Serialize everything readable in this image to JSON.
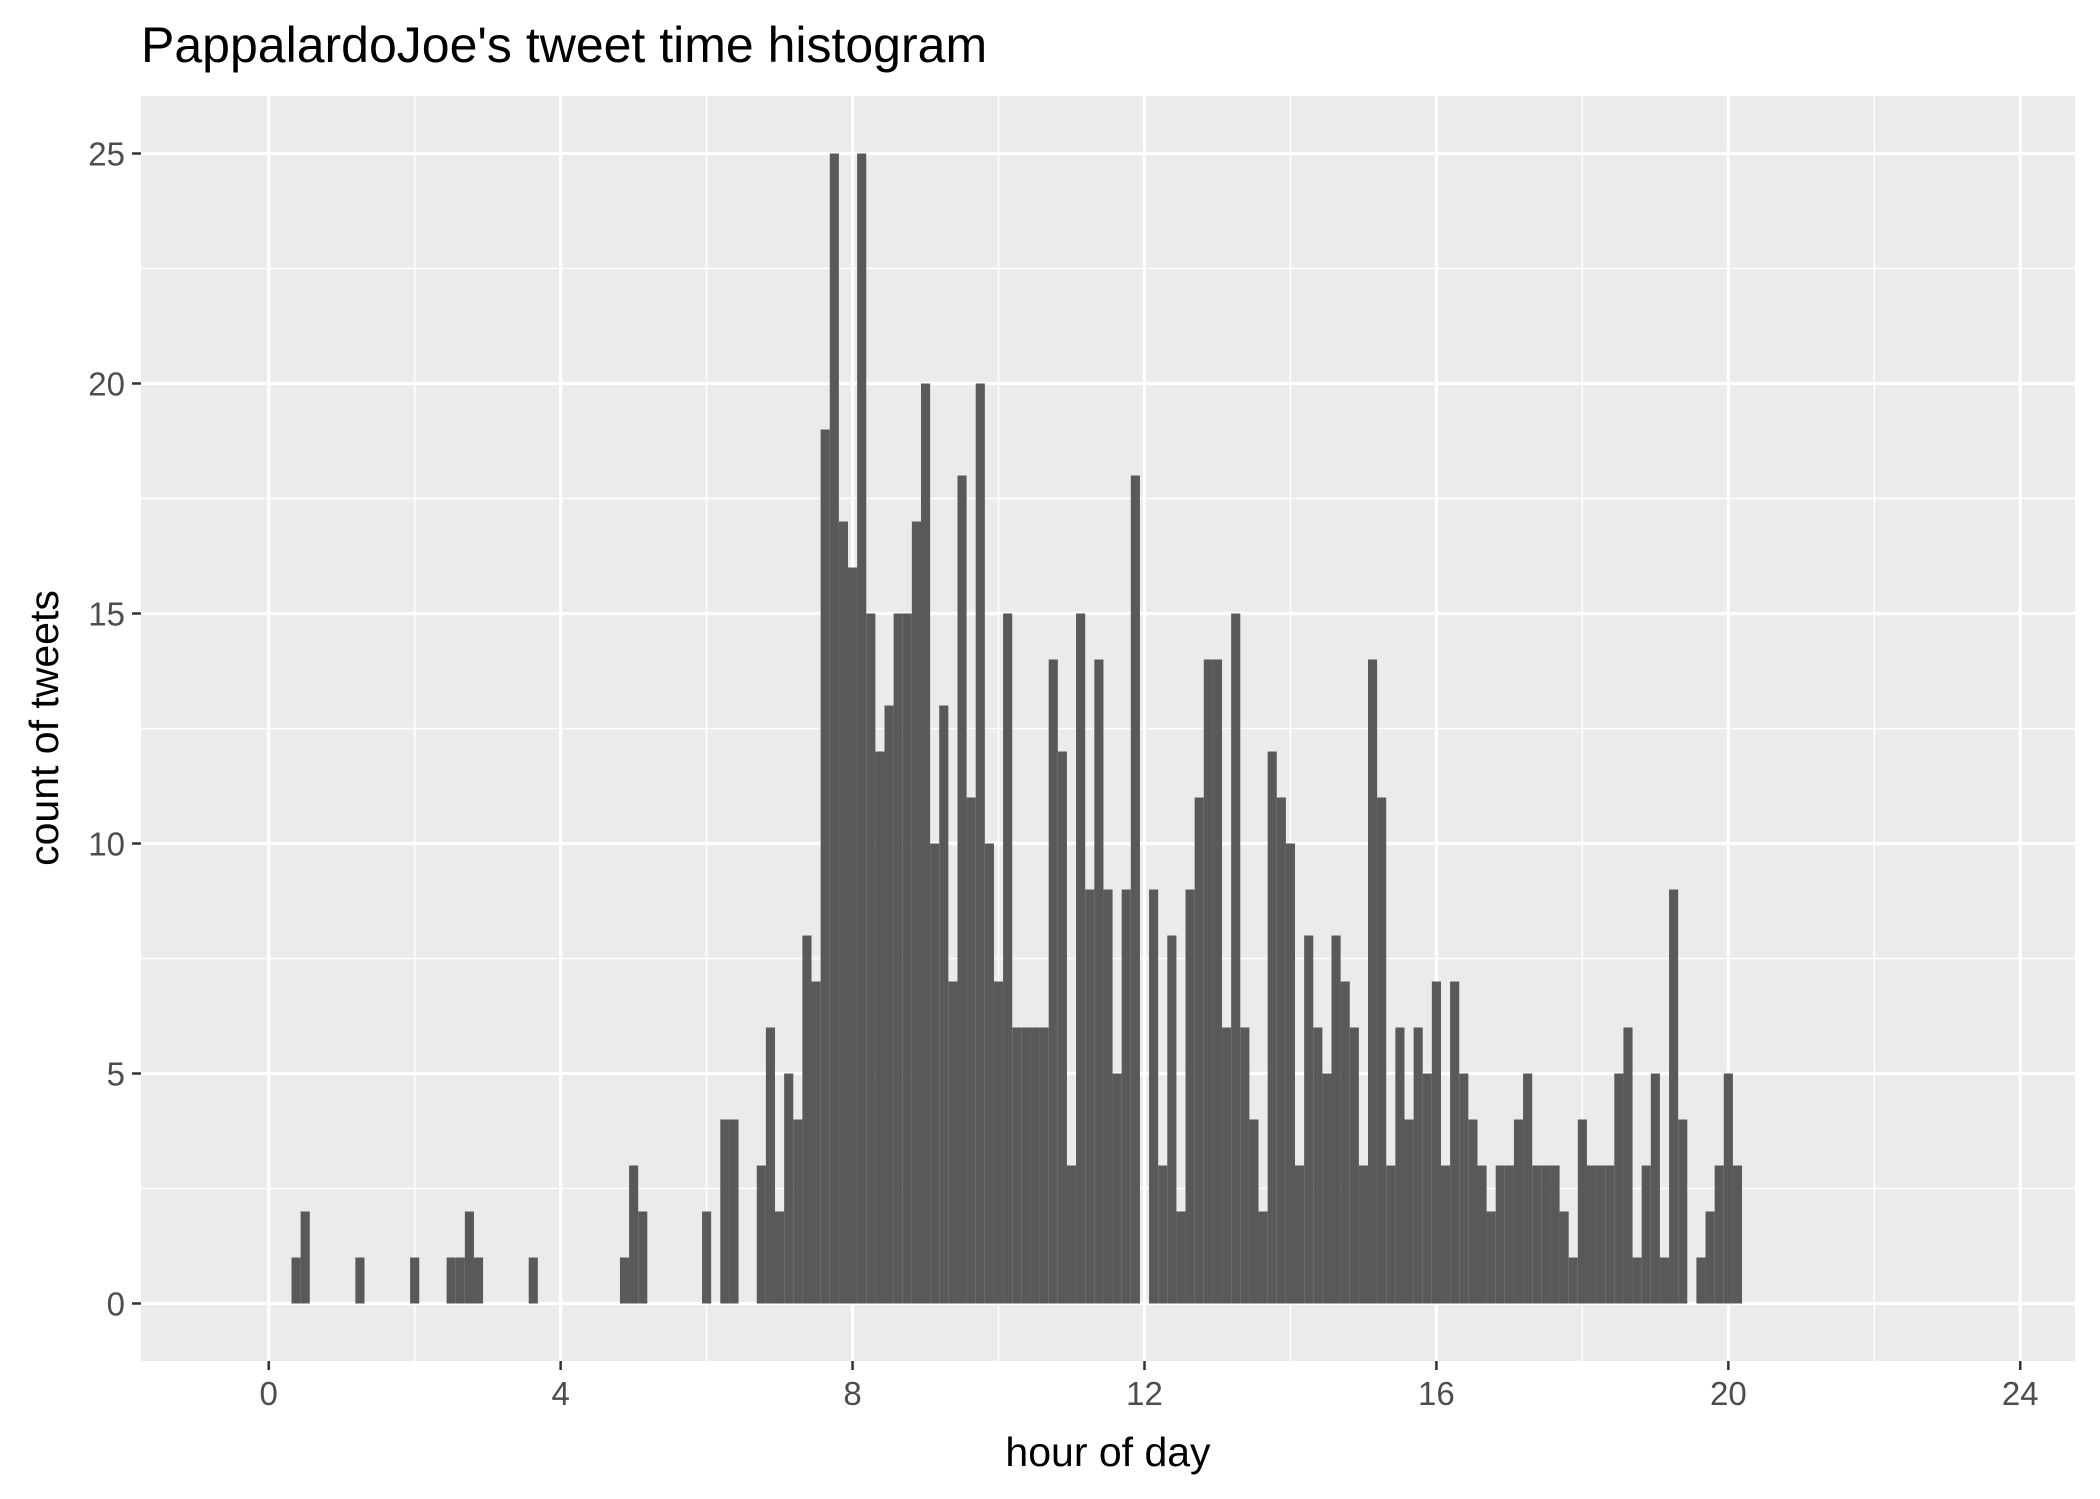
{
  "chart_data": {
    "type": "bar",
    "title": "PappalardoJoe's tweet time histogram",
    "xlabel": "hour of day",
    "ylabel": "count of tweets",
    "xlim": [
      -1.75,
      24.75
    ],
    "ylim": [
      -1.25,
      26.25
    ],
    "xticks": [
      0,
      4,
      8,
      12,
      16,
      20,
      24
    ],
    "xtick_labels": [
      "0",
      "4",
      "8",
      "12",
      "16",
      "20",
      "24"
    ],
    "yticks": [
      0,
      5,
      10,
      15,
      20,
      25
    ],
    "ytick_labels": [
      "0",
      "5",
      "10",
      "15",
      "20",
      "25"
    ],
    "grid": true,
    "legend": "none",
    "bin_width_hours": 0.125,
    "bar_color": "#595959",
    "panel_color": "#ebebeb",
    "bins": [
      {
        "x": 0.375,
        "count": 1
      },
      {
        "x": 0.5,
        "count": 2
      },
      {
        "x": 1.25,
        "count": 1
      },
      {
        "x": 2.0,
        "count": 1
      },
      {
        "x": 2.5,
        "count": 1
      },
      {
        "x": 2.625,
        "count": 1
      },
      {
        "x": 2.75,
        "count": 2
      },
      {
        "x": 2.875,
        "count": 1
      },
      {
        "x": 3.625,
        "count": 1
      },
      {
        "x": 4.875,
        "count": 1
      },
      {
        "x": 5.0,
        "count": 3
      },
      {
        "x": 5.125,
        "count": 2
      },
      {
        "x": 6.0,
        "count": 2
      },
      {
        "x": 6.25,
        "count": 4
      },
      {
        "x": 6.375,
        "count": 4
      },
      {
        "x": 6.75,
        "count": 3
      },
      {
        "x": 6.875,
        "count": 6
      },
      {
        "x": 7.0,
        "count": 2
      },
      {
        "x": 7.125,
        "count": 5
      },
      {
        "x": 7.25,
        "count": 4
      },
      {
        "x": 7.375,
        "count": 8
      },
      {
        "x": 7.5,
        "count": 7
      },
      {
        "x": 7.625,
        "count": 19
      },
      {
        "x": 7.75,
        "count": 25
      },
      {
        "x": 7.875,
        "count": 17
      },
      {
        "x": 8.0,
        "count": 16
      },
      {
        "x": 8.125,
        "count": 25
      },
      {
        "x": 8.25,
        "count": 15
      },
      {
        "x": 8.375,
        "count": 12
      },
      {
        "x": 8.5,
        "count": 13
      },
      {
        "x": 8.625,
        "count": 15
      },
      {
        "x": 8.75,
        "count": 15
      },
      {
        "x": 8.875,
        "count": 17
      },
      {
        "x": 9.0,
        "count": 20
      },
      {
        "x": 9.125,
        "count": 10
      },
      {
        "x": 9.25,
        "count": 13
      },
      {
        "x": 9.375,
        "count": 7
      },
      {
        "x": 9.5,
        "count": 18
      },
      {
        "x": 9.625,
        "count": 11
      },
      {
        "x": 9.75,
        "count": 20
      },
      {
        "x": 9.875,
        "count": 10
      },
      {
        "x": 10.0,
        "count": 7
      },
      {
        "x": 10.125,
        "count": 15
      },
      {
        "x": 10.25,
        "count": 6
      },
      {
        "x": 10.375,
        "count": 6
      },
      {
        "x": 10.5,
        "count": 6
      },
      {
        "x": 10.625,
        "count": 6
      },
      {
        "x": 10.75,
        "count": 14
      },
      {
        "x": 10.875,
        "count": 12
      },
      {
        "x": 11.0,
        "count": 3
      },
      {
        "x": 11.125,
        "count": 15
      },
      {
        "x": 11.25,
        "count": 9
      },
      {
        "x": 11.375,
        "count": 14
      },
      {
        "x": 11.5,
        "count": 9
      },
      {
        "x": 11.625,
        "count": 5
      },
      {
        "x": 11.75,
        "count": 9
      },
      {
        "x": 11.875,
        "count": 18
      },
      {
        "x": 12.125,
        "count": 9
      },
      {
        "x": 12.25,
        "count": 3
      },
      {
        "x": 12.375,
        "count": 8
      },
      {
        "x": 12.5,
        "count": 2
      },
      {
        "x": 12.625,
        "count": 9
      },
      {
        "x": 12.75,
        "count": 11
      },
      {
        "x": 12.875,
        "count": 14
      },
      {
        "x": 13.0,
        "count": 14
      },
      {
        "x": 13.125,
        "count": 6
      },
      {
        "x": 13.25,
        "count": 15
      },
      {
        "x": 13.375,
        "count": 6
      },
      {
        "x": 13.5,
        "count": 4
      },
      {
        "x": 13.625,
        "count": 2
      },
      {
        "x": 13.75,
        "count": 12
      },
      {
        "x": 13.875,
        "count": 11
      },
      {
        "x": 14.0,
        "count": 10
      },
      {
        "x": 14.125,
        "count": 3
      },
      {
        "x": 14.25,
        "count": 8
      },
      {
        "x": 14.375,
        "count": 6
      },
      {
        "x": 14.5,
        "count": 5
      },
      {
        "x": 14.625,
        "count": 8
      },
      {
        "x": 14.75,
        "count": 7
      },
      {
        "x": 14.875,
        "count": 6
      },
      {
        "x": 15.0,
        "count": 3
      },
      {
        "x": 15.125,
        "count": 14
      },
      {
        "x": 15.25,
        "count": 11
      },
      {
        "x": 15.375,
        "count": 3
      },
      {
        "x": 15.5,
        "count": 6
      },
      {
        "x": 15.625,
        "count": 4
      },
      {
        "x": 15.75,
        "count": 6
      },
      {
        "x": 15.875,
        "count": 5
      },
      {
        "x": 16.0,
        "count": 7
      },
      {
        "x": 16.125,
        "count": 3
      },
      {
        "x": 16.25,
        "count": 7
      },
      {
        "x": 16.375,
        "count": 5
      },
      {
        "x": 16.5,
        "count": 4
      },
      {
        "x": 16.625,
        "count": 3
      },
      {
        "x": 16.75,
        "count": 2
      },
      {
        "x": 16.875,
        "count": 3
      },
      {
        "x": 17.0,
        "count": 3
      },
      {
        "x": 17.125,
        "count": 4
      },
      {
        "x": 17.25,
        "count": 5
      },
      {
        "x": 17.375,
        "count": 3
      },
      {
        "x": 17.5,
        "count": 3
      },
      {
        "x": 17.625,
        "count": 3
      },
      {
        "x": 17.75,
        "count": 2
      },
      {
        "x": 17.875,
        "count": 1
      },
      {
        "x": 18.0,
        "count": 4
      },
      {
        "x": 18.125,
        "count": 3
      },
      {
        "x": 18.25,
        "count": 3
      },
      {
        "x": 18.375,
        "count": 3
      },
      {
        "x": 18.5,
        "count": 5
      },
      {
        "x": 18.625,
        "count": 6
      },
      {
        "x": 18.75,
        "count": 1
      },
      {
        "x": 18.875,
        "count": 3
      },
      {
        "x": 19.0,
        "count": 5
      },
      {
        "x": 19.125,
        "count": 1
      },
      {
        "x": 19.25,
        "count": 9
      },
      {
        "x": 19.375,
        "count": 4
      },
      {
        "x": 19.625,
        "count": 1
      },
      {
        "x": 19.75,
        "count": 2
      },
      {
        "x": 19.875,
        "count": 3
      },
      {
        "x": 20.0,
        "count": 5
      },
      {
        "x": 20.125,
        "count": 3
      }
    ]
  }
}
